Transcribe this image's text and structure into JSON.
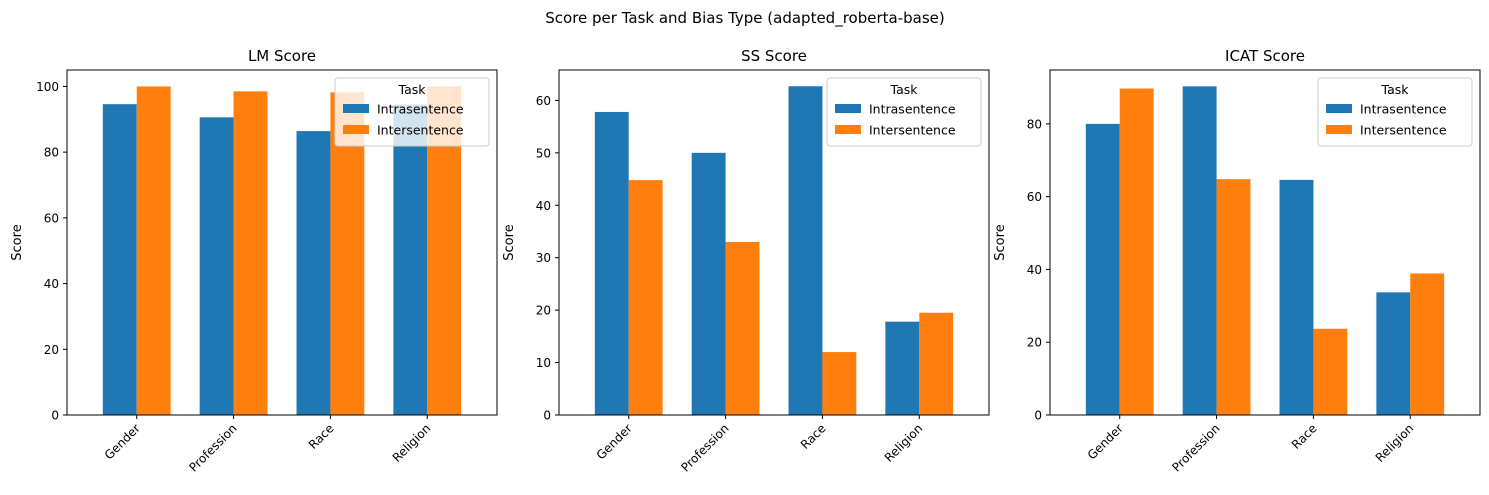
{
  "figure": {
    "suptitle": "Score per Task and Bias Type (adapted_roberta-base)"
  },
  "colors": {
    "Intrasentence": "#1f77b4",
    "Intersentence": "#ff7f0e"
  },
  "chart_data": [
    {
      "type": "bar",
      "title": "LM Score",
      "xlabel": "",
      "ylabel": "Score",
      "categories": [
        "Gender",
        "Profession",
        "Race",
        "Religion"
      ],
      "series": [
        {
          "name": "Intrasentence",
          "values": [
            94.6,
            90.6,
            86.4,
            94.5
          ]
        },
        {
          "name": "Intersentence",
          "values": [
            100.0,
            98.5,
            98.2,
            100.0
          ]
        }
      ],
      "ylim": [
        0,
        105
      ],
      "yticks": [
        0,
        20,
        40,
        60,
        80,
        100
      ],
      "legend": {
        "title": "Task",
        "placement": "top-right"
      },
      "grid": false
    },
    {
      "type": "bar",
      "title": "SS Score",
      "xlabel": "",
      "ylabel": "Score",
      "categories": [
        "Gender",
        "Profession",
        "Race",
        "Religion"
      ],
      "series": [
        {
          "name": "Intrasentence",
          "values": [
            57.8,
            50.0,
            62.7,
            17.8
          ]
        },
        {
          "name": "Intersentence",
          "values": [
            44.8,
            33.0,
            12.0,
            19.5
          ]
        }
      ],
      "ylim": [
        0,
        65.8
      ],
      "yticks": [
        0,
        10,
        20,
        30,
        40,
        50,
        60
      ],
      "legend": {
        "title": "Task",
        "placement": "top-right"
      },
      "grid": false
    },
    {
      "type": "bar",
      "title": "ICAT Score",
      "xlabel": "",
      "ylabel": "Score",
      "categories": [
        "Gender",
        "Profession",
        "Race",
        "Religion"
      ],
      "series": [
        {
          "name": "Intrasentence",
          "values": [
            80.0,
            90.3,
            64.6,
            33.7
          ]
        },
        {
          "name": "Intersentence",
          "values": [
            89.7,
            64.8,
            23.7,
            38.9
          ]
        }
      ],
      "ylim": [
        0,
        94.8
      ],
      "yticks": [
        0,
        20,
        40,
        60,
        80
      ],
      "legend": {
        "title": "Task",
        "placement": "top-right"
      },
      "grid": false
    }
  ]
}
